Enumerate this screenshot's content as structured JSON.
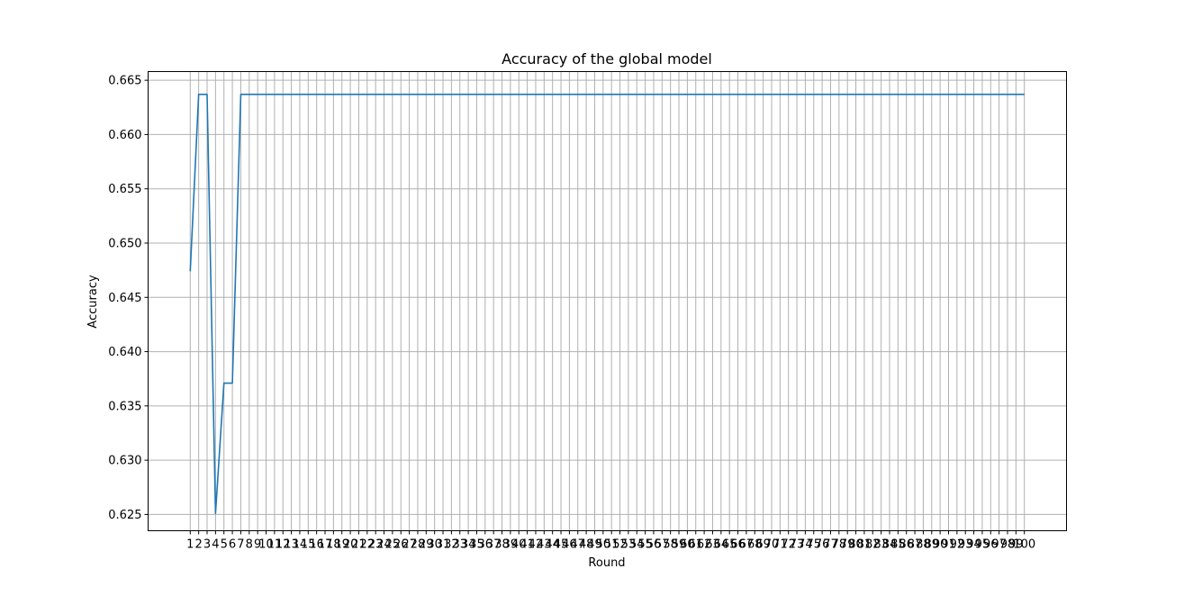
{
  "chart_data": {
    "type": "line",
    "title": "Accuracy of the global model",
    "xlabel": "Round",
    "ylabel": "Accuracy",
    "x": [
      1,
      2,
      3,
      4,
      5,
      6,
      7,
      8,
      9,
      10,
      11,
      12,
      13,
      14,
      15,
      16,
      17,
      18,
      19,
      20,
      21,
      22,
      23,
      24,
      25,
      26,
      27,
      28,
      29,
      30,
      31,
      32,
      33,
      34,
      35,
      36,
      37,
      38,
      39,
      40,
      41,
      42,
      43,
      44,
      45,
      46,
      47,
      48,
      49,
      50,
      51,
      52,
      53,
      54,
      55,
      56,
      57,
      58,
      59,
      60,
      61,
      62,
      63,
      64,
      65,
      66,
      67,
      68,
      69,
      70,
      71,
      72,
      73,
      74,
      75,
      76,
      77,
      78,
      79,
      80,
      81,
      82,
      83,
      84,
      85,
      86,
      87,
      88,
      89,
      90,
      91,
      92,
      93,
      94,
      95,
      96,
      97,
      98,
      99,
      100
    ],
    "series": [
      {
        "color": "#1f77b4",
        "values": [
          0.6474,
          0.6637,
          0.6637,
          0.6251,
          0.6371,
          0.6371,
          0.6637,
          0.6637,
          0.6637,
          0.6637,
          0.6637,
          0.6637,
          0.6637,
          0.6637,
          0.6637,
          0.6637,
          0.6637,
          0.6637,
          0.6637,
          0.6637,
          0.6637,
          0.6637,
          0.6637,
          0.6637,
          0.6637,
          0.6637,
          0.6637,
          0.6637,
          0.6637,
          0.6637,
          0.6637,
          0.6637,
          0.6637,
          0.6637,
          0.6637,
          0.6637,
          0.6637,
          0.6637,
          0.6637,
          0.6637,
          0.6637,
          0.6637,
          0.6637,
          0.6637,
          0.6637,
          0.6637,
          0.6637,
          0.6637,
          0.6637,
          0.6637,
          0.6637,
          0.6637,
          0.6637,
          0.6637,
          0.6637,
          0.6637,
          0.6637,
          0.6637,
          0.6637,
          0.6637,
          0.6637,
          0.6637,
          0.6637,
          0.6637,
          0.6637,
          0.6637,
          0.6637,
          0.6637,
          0.6637,
          0.6637,
          0.6637,
          0.6637,
          0.6637,
          0.6637,
          0.6637,
          0.6637,
          0.6637,
          0.6637,
          0.6637,
          0.6637,
          0.6637,
          0.6637,
          0.6637,
          0.6637,
          0.6637,
          0.6637,
          0.6637,
          0.6637,
          0.6637,
          0.6637,
          0.6637,
          0.6637,
          0.6637,
          0.6637,
          0.6637,
          0.6637,
          0.6637,
          0.6637,
          0.6637,
          0.6637
        ]
      }
    ],
    "xlim": [
      -4,
      105
    ],
    "ylim": [
      0.6235,
      0.6658
    ],
    "yticks": [
      0.625,
      0.63,
      0.635,
      0.64,
      0.645,
      0.65,
      0.655,
      0.66,
      0.665
    ],
    "ytick_labels": [
      "0.625",
      "0.630",
      "0.635",
      "0.640",
      "0.645",
      "0.650",
      "0.655",
      "0.660",
      "0.665"
    ],
    "grid": true,
    "grid_color": "#b0b0b0",
    "line_color": "#1f77b4"
  }
}
